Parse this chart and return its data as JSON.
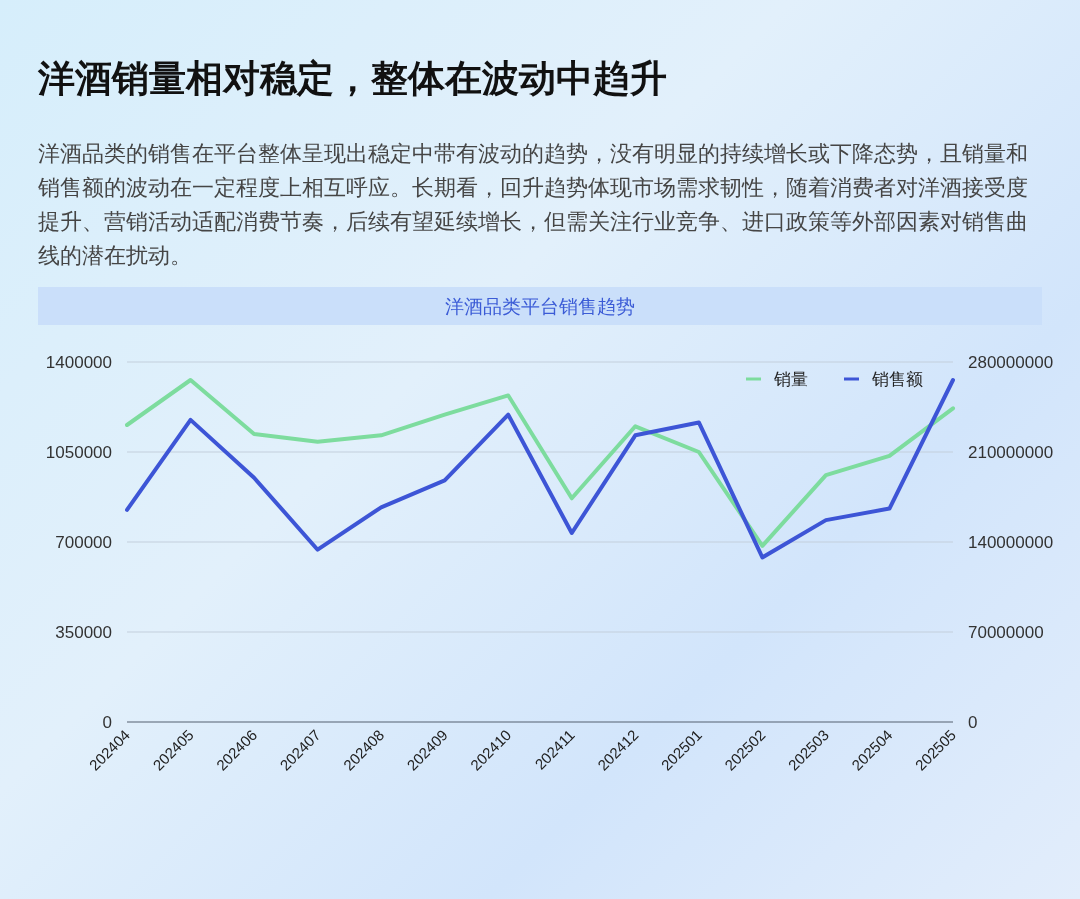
{
  "chart_data": {
    "type": "line",
    "title": "洋酒销量相对稳定，整体在波动中趋升",
    "subtitle": "洋酒品类的销售在平台整体呈现出稳定中带有波动的趋势，没有明显的持续增长或下降态势，且销量和销售额的波动在一定程度上相互呼应。长期看，回升趋势体现市场需求韧性，随着消费者对洋酒接受度提升、营销活动适配消费节奏，后续有望延续增长，但需关注行业竞争、进口政策等外部因素对销售曲线的潜在扰动。",
    "annotations": [
      "洋酒品类平台销售趋势"
    ],
    "categories": [
      "202404",
      "202405",
      "202406",
      "202407",
      "202408",
      "202409",
      "202410",
      "202411",
      "202412",
      "202501",
      "202502",
      "202503",
      "202504",
      "202505"
    ],
    "series": [
      {
        "name": "销量",
        "color": "#7ddc9e",
        "axis": "y",
        "values": [
          1155000,
          1330000,
          1120000,
          1090000,
          1115000,
          1195000,
          1270000,
          870000,
          1150000,
          1050000,
          685000,
          960000,
          1035000,
          1220000
        ]
      },
      {
        "name": "销售额",
        "color": "#3d55d6",
        "axis": "y2",
        "values": [
          165000000,
          235000000,
          190000000,
          134000000,
          167000000,
          188000000,
          239000000,
          147000000,
          223000000,
          233000000,
          128000000,
          157000000,
          166000000,
          266000000
        ]
      }
    ],
    "ylim": [
      0,
      1400000
    ],
    "yticks": [
      0,
      350000,
      700000,
      1050000,
      1400000
    ],
    "y2lim": [
      0,
      280000000
    ],
    "y2ticks": [
      0,
      70000000,
      140000000,
      210000000,
      280000000
    ],
    "grid": "y",
    "legend": "top right",
    "line_style": "solid"
  }
}
